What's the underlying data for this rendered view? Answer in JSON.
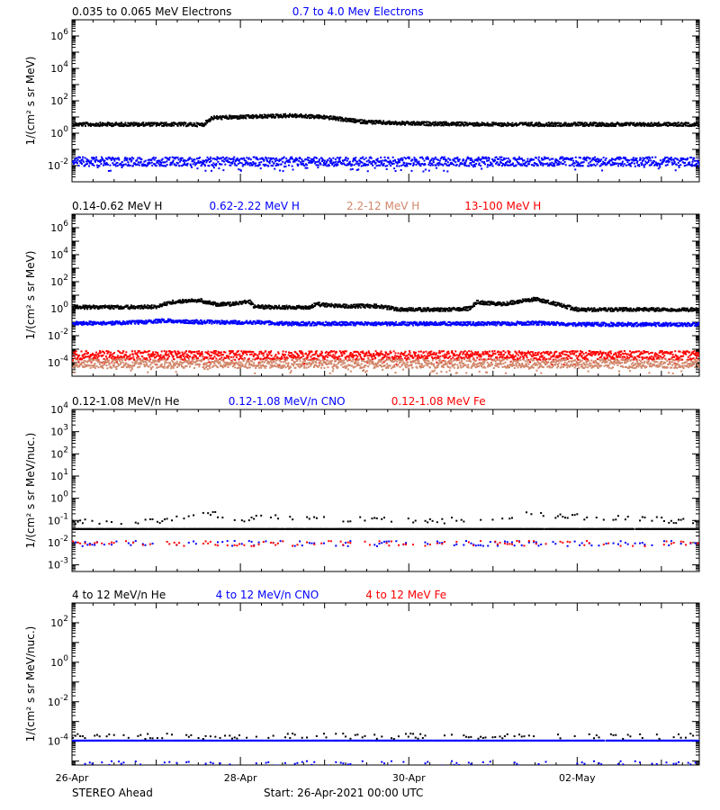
{
  "chart_data": [
    {
      "type": "scatter",
      "log_y": true,
      "ylim_exp": [
        -3,
        7
      ],
      "yticks_exp": [
        -2,
        0,
        2,
        4,
        6
      ],
      "ylabel": "1/(cm² s sr MeV)",
      "legend": [
        {
          "text": "0.035 to 0.065 MeV Electrons",
          "color": "#000000"
        },
        {
          "text": "0.7 to 4.0 Mev Electrons",
          "color": "#0000ff"
        }
      ],
      "series": [
        {
          "color": "#000000",
          "style": "line",
          "x": [
            0,
            0.8,
            1.2,
            1.55,
            1.65,
            2.2,
            2.6,
            3.0,
            3.4,
            3.7,
            4.0,
            5.0,
            6.0,
            7.45
          ],
          "y": [
            4,
            4,
            4,
            3.8,
            10,
            12,
            14,
            11,
            6,
            5,
            4.5,
            4,
            4,
            4
          ]
        },
        {
          "color": "#0000ff",
          "style": "noisy",
          "x": [
            0,
            2,
            4,
            6,
            7.45
          ],
          "y": [
            0.02,
            0.02,
            0.02,
            0.02,
            0.02
          ]
        }
      ]
    },
    {
      "type": "scatter",
      "log_y": true,
      "ylim_exp": [
        -5,
        7
      ],
      "yticks_exp": [
        -4,
        -2,
        0,
        2,
        4,
        6
      ],
      "ylabel": "1/(cm² s sr MeV)",
      "legend": [
        {
          "text": "0.14-0.62 MeV H",
          "color": "#000000"
        },
        {
          "text": "0.62-2.22 MeV H",
          "color": "#0000ff"
        },
        {
          "text": "2.2-12 MeV H",
          "color": "#d2876a"
        },
        {
          "text": "13-100 MeV H",
          "color": "#ff0000"
        }
      ],
      "series": [
        {
          "color": "#000000",
          "style": "line",
          "x": [
            0,
            0.6,
            1.0,
            1.15,
            1.5,
            1.7,
            1.9,
            2.1,
            2.15,
            2.3,
            2.8,
            2.9,
            3.2,
            3.6,
            3.9,
            4.5,
            4.7,
            4.8,
            5.1,
            5.3,
            5.5,
            6.0,
            7.45
          ],
          "y": [
            1.5,
            1.5,
            1.6,
            3.5,
            5,
            2.5,
            2.6,
            4,
            1.6,
            1.5,
            1.5,
            2.5,
            1.8,
            1.8,
            1.0,
            1.0,
            1.2,
            3.5,
            2.5,
            4,
            6,
            1.0,
            1.0
          ]
        },
        {
          "color": "#0000ff",
          "style": "line",
          "x": [
            0,
            0.6,
            1.1,
            1.5,
            2.2,
            2.6,
            3.5,
            5.0,
            5.5,
            6.0,
            7.45
          ],
          "y": [
            0.1,
            0.1,
            0.15,
            0.12,
            0.11,
            0.09,
            0.09,
            0.09,
            0.1,
            0.08,
            0.08
          ]
        },
        {
          "color": "#ff0000",
          "style": "noisy",
          "x": [
            0,
            3.7,
            7.45
          ],
          "y": [
            0.0004,
            0.0004,
            0.0004
          ]
        },
        {
          "color": "#d2876a",
          "style": "noisy",
          "x": [
            0,
            3.7,
            7.45
          ],
          "y": [
            0.0001,
            0.0001,
            0.0001
          ]
        }
      ]
    },
    {
      "type": "scatter",
      "log_y": true,
      "ylim_exp": [
        -3.3,
        4
      ],
      "yticks_exp": [
        -3,
        -2,
        -1,
        0,
        1,
        2,
        3,
        4
      ],
      "ylabel": "1/(cm² s sr MeV/nuc.)",
      "legend": [
        {
          "text": "0.12-1.08 MeV/n He",
          "color": "#000000"
        },
        {
          "text": "0.12-1.08 MeV/n CNO",
          "color": "#0000ff"
        },
        {
          "text": "0.12-1.08 MeV Fe",
          "color": "#ff0000"
        }
      ],
      "series": [
        {
          "color": "#000000",
          "style": "quantized",
          "x": [
            0,
            7.45
          ],
          "y": [
            0.045,
            0.045
          ]
        },
        {
          "color": "#000000",
          "style": "sparse",
          "x": [
            0,
            1.1,
            1.6,
            2.0,
            2.2,
            4.3,
            5.0,
            5.4,
            7.45
          ],
          "y": [
            0.1,
            0.1,
            0.25,
            0.1,
            0.15,
            0.1,
            0.15,
            0.2,
            0.1
          ]
        },
        {
          "color": "#0000ff",
          "style": "sparse",
          "x": [
            0,
            7.45
          ],
          "y": [
            0.01,
            0.01
          ]
        },
        {
          "color": "#ff0000",
          "style": "sparse",
          "x": [
            0,
            7.45
          ],
          "y": [
            0.01,
            0.01
          ]
        }
      ]
    },
    {
      "type": "scatter",
      "log_y": true,
      "ylim_exp": [
        -5.2,
        3
      ],
      "yticks_exp": [
        -4,
        -2,
        0,
        2
      ],
      "ylabel": "1/(cm² s sr MeV/nuc.)",
      "legend": [
        {
          "text": "4 to 12 MeV/n He",
          "color": "#000000"
        },
        {
          "text": "4 to 12 MeV/n CNO",
          "color": "#0000ff"
        },
        {
          "text": "4 to 12 MeV Fe",
          "color": "#ff0000"
        }
      ],
      "series": [
        {
          "color": "#0000ff",
          "style": "quantized",
          "x": [
            0,
            7.45
          ],
          "y": [
            0.00012,
            0.00012
          ]
        },
        {
          "color": "#000000",
          "style": "sparse",
          "x": [
            0,
            7.45
          ],
          "y": [
            0.0002,
            0.0002
          ]
        },
        {
          "color": "#0000ff",
          "style": "sparse",
          "x": [
            0,
            7.45
          ],
          "y": [
            8e-06,
            8e-06
          ]
        }
      ]
    }
  ],
  "x_axis": {
    "range_days": [
      0,
      7.45
    ],
    "major_ticks": [
      {
        "day": 0,
        "label": "26-Apr"
      },
      {
        "day": 2,
        "label": "28-Apr"
      },
      {
        "day": 4,
        "label": "30-Apr"
      },
      {
        "day": 6,
        "label": "02-May"
      }
    ]
  },
  "footer": {
    "spacecraft": "STEREO Ahead",
    "start": "Start: 26-Apr-2021 00:00 UTC"
  }
}
